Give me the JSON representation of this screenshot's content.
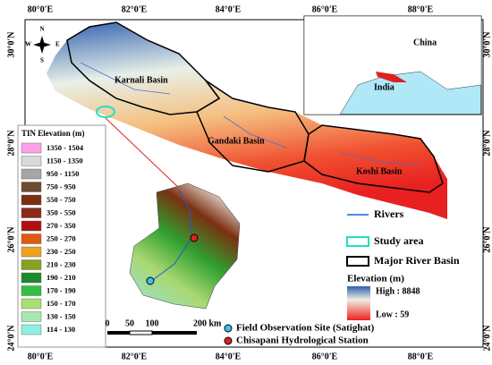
{
  "axes": {
    "top": [
      "80°0'E",
      "82°0'E",
      "84°0'E",
      "86°0'E",
      "88°0'E"
    ],
    "bottom": [
      "80°0'E",
      "82°0'E",
      "84°0'E",
      "86°0'E",
      "88°0'E"
    ],
    "left": [
      "30°0'N",
      "28°0'N",
      "26°0'N",
      "24°0'N"
    ],
    "right": [
      "30°0'N",
      "28°0'N",
      "26°0'N",
      "24°0'N"
    ]
  },
  "compass": {
    "n": "N",
    "s": "S",
    "e": "E",
    "w": "W"
  },
  "basins": [
    "Karnali Basin",
    "Gandaki Basin",
    "Koshi Basin"
  ],
  "inset": {
    "china": "China",
    "india": "India"
  },
  "tin_legend": {
    "title": "TIN Elevation (m)",
    "entries": [
      {
        "label": "1350 - 1504",
        "color": "#ff9ee8"
      },
      {
        "label": "1150 - 1350",
        "color": "#d9d9d9"
      },
      {
        "label": "950 - 1150",
        "color": "#a6a6a6"
      },
      {
        "label": "750 - 950",
        "color": "#6e4a2e"
      },
      {
        "label": "550 - 750",
        "color": "#7a3010"
      },
      {
        "label": "350 - 550",
        "color": "#8b2a1a"
      },
      {
        "label": "270 - 350",
        "color": "#b01010"
      },
      {
        "label": "250 - 270",
        "color": "#e05a10"
      },
      {
        "label": "230 - 250",
        "color": "#f0a020"
      },
      {
        "label": "210 - 230",
        "color": "#8aa020"
      },
      {
        "label": "190 - 210",
        "color": "#1a8a2a"
      },
      {
        "label": "170 - 190",
        "color": "#30c040"
      },
      {
        "label": "150 - 170",
        "color": "#a8e070"
      },
      {
        "label": "130 - 150",
        "color": "#a8e8b0"
      },
      {
        "label": "114 - 130",
        "color": "#8ef0e0"
      }
    ]
  },
  "legend": {
    "rivers": "Rivers",
    "study_area": "Study area",
    "basin": "Major River Basin",
    "elevation": "Elevation (m)",
    "high": "High : 8848",
    "low": "Low : 59"
  },
  "scale": [
    "0",
    "50",
    "100",
    "200 km"
  ],
  "stations": {
    "field": "Field Observation Site (Satighat)",
    "hydro": "Chisapani Hydrological Station"
  }
}
